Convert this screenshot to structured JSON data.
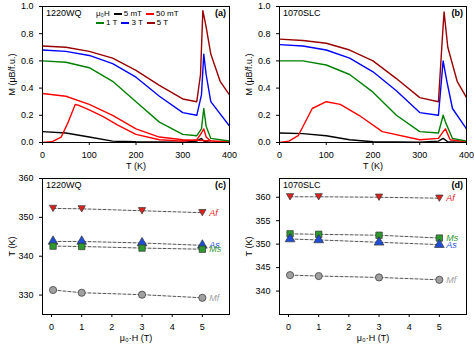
{
  "chart_data": [
    {
      "type": "line",
      "title": "1220WQ",
      "annotations": [
        "(a)"
      ],
      "x_label": "T (K)",
      "y_label": "M (μB/f.u.)",
      "xlim": [
        0,
        400
      ],
      "xticks": [
        0,
        100,
        200,
        300,
        400
      ],
      "ylim": [
        0,
        1
      ],
      "yticks": [
        {
          "value": 0,
          "label": "0.0"
        },
        0.2,
        0.4,
        0.6,
        0.8,
        {
          "value": 1,
          "label": "1.0"
        }
      ],
      "legend": "top",
      "legend_title": "μ₀H",
      "series": [
        {
          "name": "5 mT",
          "color": "#000000",
          "x": [
            0,
            50,
            100,
            150,
            200,
            300,
            330,
            340,
            345,
            360,
            400
          ],
          "values": [
            0.08,
            0.07,
            0.04,
            0.01,
            0.005,
            0.003,
            0.01,
            0.03,
            0.01,
            0.0,
            0.0
          ]
        },
        {
          "name": "50 mT",
          "color": "#ff0000",
          "x": [
            0,
            20,
            40,
            55,
            70,
            80,
            100,
            130,
            160,
            200,
            250,
            300,
            330,
            340,
            345,
            350,
            360,
            400,
            340,
            300,
            250,
            200,
            150,
            100,
            50,
            0
          ],
          "values": [
            0.0,
            0.005,
            0.04,
            0.15,
            0.28,
            0.27,
            0.24,
            0.19,
            0.13,
            0.06,
            0.02,
            0.01,
            0.02,
            0.07,
            0.1,
            0.04,
            0.01,
            0.005,
            0.015,
            0.02,
            0.04,
            0.1,
            0.2,
            0.28,
            0.34,
            0.36
          ]
        },
        {
          "name": "1 T",
          "color": "#008000",
          "x": [
            0,
            50,
            100,
            150,
            200,
            250,
            300,
            330,
            340,
            345,
            350,
            360,
            400
          ],
          "values": [
            0.6,
            0.59,
            0.55,
            0.45,
            0.3,
            0.15,
            0.06,
            0.05,
            0.1,
            0.25,
            0.12,
            0.03,
            0.01
          ]
        },
        {
          "name": "3 T",
          "color": "#0000ff",
          "x": [
            0,
            50,
            100,
            150,
            200,
            250,
            300,
            330,
            340,
            345,
            350,
            360,
            400
          ],
          "values": [
            0.68,
            0.67,
            0.64,
            0.58,
            0.48,
            0.34,
            0.22,
            0.2,
            0.35,
            0.65,
            0.5,
            0.3,
            0.12
          ]
        },
        {
          "name": "5 T",
          "color": "#990000",
          "x": [
            0,
            50,
            100,
            150,
            200,
            250,
            300,
            330,
            338,
            343,
            350,
            360,
            380,
            400
          ],
          "values": [
            0.71,
            0.7,
            0.67,
            0.62,
            0.53,
            0.42,
            0.32,
            0.3,
            0.5,
            0.97,
            0.85,
            0.65,
            0.45,
            0.35
          ]
        }
      ]
    },
    {
      "type": "line",
      "title": "1070SLC",
      "annotations": [
        "(b)"
      ],
      "x_label": "T (K)",
      "y_label": "M (μB/f.u.)",
      "xlim": [
        0,
        400
      ],
      "xticks": [
        0,
        100,
        200,
        300,
        400
      ],
      "ylim": [
        0,
        1
      ],
      "yticks": [
        {
          "value": 0,
          "label": "0.0"
        },
        0.2,
        0.4,
        0.6,
        0.8,
        {
          "value": 1,
          "label": "1.0"
        }
      ],
      "series": [
        {
          "color": "#000000",
          "x": [
            0,
            50,
            100,
            150,
            200,
            300,
            340,
            350,
            360,
            400
          ],
          "values": [
            0.07,
            0.065,
            0.05,
            0.02,
            0.005,
            0.003,
            0.01,
            0.03,
            0.005,
            0.0
          ]
        },
        {
          "color": "#ff0000",
          "x": [
            0,
            20,
            40,
            70,
            100,
            130,
            170,
            220,
            300,
            340,
            350,
            355,
            365,
            400
          ],
          "values": [
            0.0,
            0.01,
            0.05,
            0.25,
            0.3,
            0.28,
            0.2,
            0.08,
            0.02,
            0.03,
            0.08,
            0.1,
            0.02,
            0.005
          ]
        },
        {
          "color": "#008000",
          "x": [
            0,
            50,
            100,
            150,
            200,
            250,
            300,
            340,
            350,
            355,
            370,
            400
          ],
          "values": [
            0.6,
            0.6,
            0.57,
            0.5,
            0.37,
            0.2,
            0.08,
            0.07,
            0.2,
            0.15,
            0.03,
            0.01
          ]
        },
        {
          "color": "#0000ff",
          "x": [
            0,
            50,
            100,
            150,
            200,
            250,
            300,
            340,
            350,
            358,
            370,
            400
          ],
          "values": [
            0.72,
            0.71,
            0.68,
            0.62,
            0.52,
            0.38,
            0.22,
            0.2,
            0.6,
            0.45,
            0.25,
            0.1
          ]
        },
        {
          "color": "#990000",
          "x": [
            0,
            50,
            100,
            150,
            200,
            250,
            300,
            340,
            348,
            352,
            360,
            380,
            400
          ],
          "values": [
            0.76,
            0.75,
            0.73,
            0.68,
            0.6,
            0.47,
            0.33,
            0.3,
            0.75,
            0.96,
            0.7,
            0.45,
            0.33
          ]
        }
      ]
    },
    {
      "type": "line",
      "title": "1220WQ",
      "annotations": [
        "(c)"
      ],
      "x_label": "μ₀·H (T)",
      "y_label": "T (K)",
      "xlim": [
        -0.3,
        5.9
      ],
      "xticks": [
        0,
        1,
        2,
        3,
        4,
        5
      ],
      "ylim": [
        325,
        360
      ],
      "yticks": [
        330,
        340,
        350,
        360
      ],
      "series": [
        {
          "name": "Af",
          "color": "#e0201b",
          "marker": "triangle-down",
          "line_style": "dashed",
          "x": [
            0.05,
            1,
            3,
            5
          ],
          "values": [
            352.3,
            352.2,
            351.7,
            351.2
          ]
        },
        {
          "name": "As",
          "color": "#1f4fd8",
          "marker": "triangle",
          "line_style": "dashed",
          "x": [
            0.05,
            1,
            3,
            5
          ],
          "values": [
            343.8,
            343.8,
            343.4,
            342.8
          ]
        },
        {
          "name": "Ms",
          "color": "#2e9a2e",
          "marker": "square",
          "line_style": "dashed",
          "x": [
            0.05,
            1,
            3,
            5
          ],
          "values": [
            342.6,
            342.5,
            342.1,
            341.8
          ]
        },
        {
          "name": "Mf",
          "color": "#a0a0a0",
          "marker": "circle",
          "line_style": "dashed",
          "x": [
            0.05,
            1,
            3,
            5
          ],
          "values": [
            331.3,
            330.6,
            330.1,
            329.3
          ]
        }
      ]
    },
    {
      "type": "line",
      "title": "1070SLC",
      "annotations": [
        "(d)"
      ],
      "x_label": "μ₀·H (T)",
      "y_label": "T (K)",
      "xlim": [
        -0.3,
        5.9
      ],
      "xticks": [
        0,
        1,
        2,
        3,
        4,
        5
      ],
      "ylim": [
        335,
        364
      ],
      "yticks": [
        340,
        345,
        350,
        355,
        360
      ],
      "series": [
        {
          "name": "Af",
          "color": "#e0201b",
          "marker": "triangle-down",
          "line_style": "dashed",
          "x": [
            0.05,
            1,
            3,
            5
          ],
          "values": [
            360.1,
            360.1,
            360.0,
            359.8
          ]
        },
        {
          "name": "Ms",
          "color": "#2e9a2e",
          "marker": "square",
          "line_style": "dashed",
          "x": [
            0.05,
            1,
            3,
            5
          ],
          "values": [
            352.2,
            352.1,
            351.9,
            351.3
          ]
        },
        {
          "name": "As",
          "color": "#1f4fd8",
          "marker": "triangle",
          "line_style": "dashed",
          "x": [
            0.05,
            1,
            3,
            5
          ],
          "values": [
            351.1,
            350.9,
            350.4,
            349.9
          ]
        },
        {
          "name": "Mf",
          "color": "#a0a0a0",
          "marker": "circle",
          "line_style": "dashed",
          "x": [
            0.05,
            1,
            3,
            5
          ],
          "values": [
            343.4,
            343.2,
            342.9,
            342.4
          ]
        }
      ]
    }
  ]
}
